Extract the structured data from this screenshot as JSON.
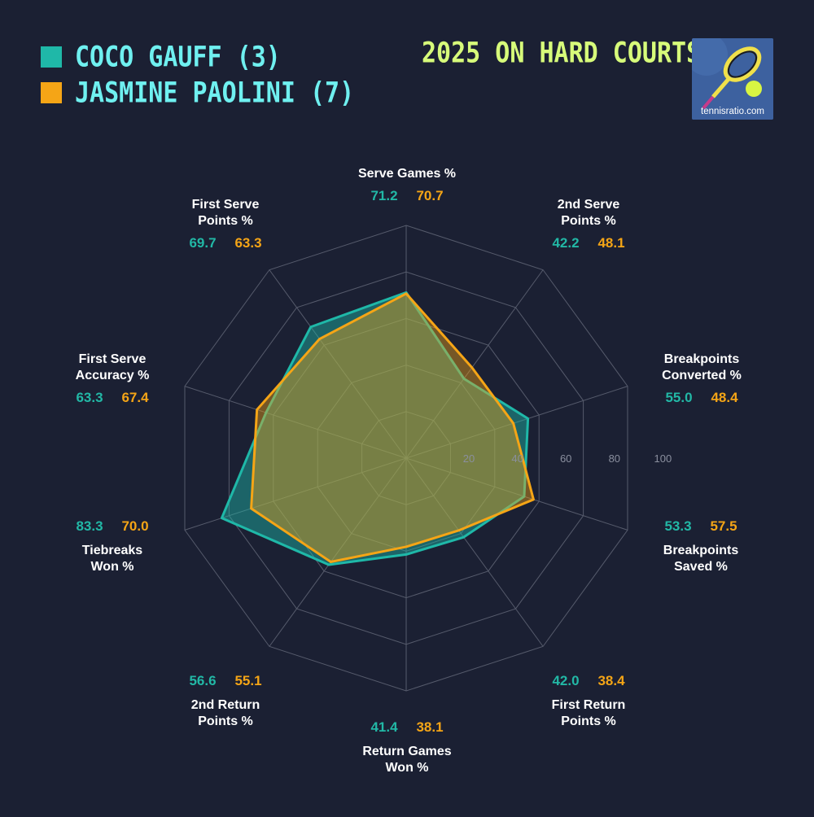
{
  "legend": [
    {
      "label": "COCO GAUFF (3)",
      "color": "#1fb8a8"
    },
    {
      "label": "JASMINE PAOLINI (7)",
      "color": "#f5a516"
    }
  ],
  "title": "2025 ON HARD COURTS",
  "logo": {
    "text": "tennisratio.com"
  },
  "chart_data": {
    "type": "radar",
    "rmax": 100,
    "ticks": [
      20,
      40,
      60,
      80,
      100
    ],
    "categories": [
      {
        "lines": [
          "Serve Games %"
        ]
      },
      {
        "lines": [
          "2nd Serve",
          "Points %"
        ]
      },
      {
        "lines": [
          "Breakpoints",
          "Converted %"
        ]
      },
      {
        "lines": [
          "Breakpoints",
          "Saved %"
        ]
      },
      {
        "lines": [
          "First Return",
          "Points %"
        ]
      },
      {
        "lines": [
          "Return Games",
          "Won %"
        ]
      },
      {
        "lines": [
          "2nd Return",
          "Points %"
        ]
      },
      {
        "lines": [
          "Tiebreaks",
          "Won %"
        ]
      },
      {
        "lines": [
          "First Serve",
          "Accuracy %"
        ]
      },
      {
        "lines": [
          "First Serve",
          "Points %"
        ]
      }
    ],
    "series": [
      {
        "name": "COCO GAUFF (3)",
        "color": "#1fb8a8",
        "values": [
          71.2,
          42.2,
          55.0,
          53.3,
          42.0,
          41.4,
          56.6,
          83.3,
          63.3,
          69.7
        ]
      },
      {
        "name": "JASMINE PAOLINI (7)",
        "color": "#f5a516",
        "values": [
          70.7,
          48.1,
          48.4,
          57.5,
          38.4,
          38.1,
          55.1,
          70.0,
          67.4,
          63.3
        ]
      }
    ]
  }
}
